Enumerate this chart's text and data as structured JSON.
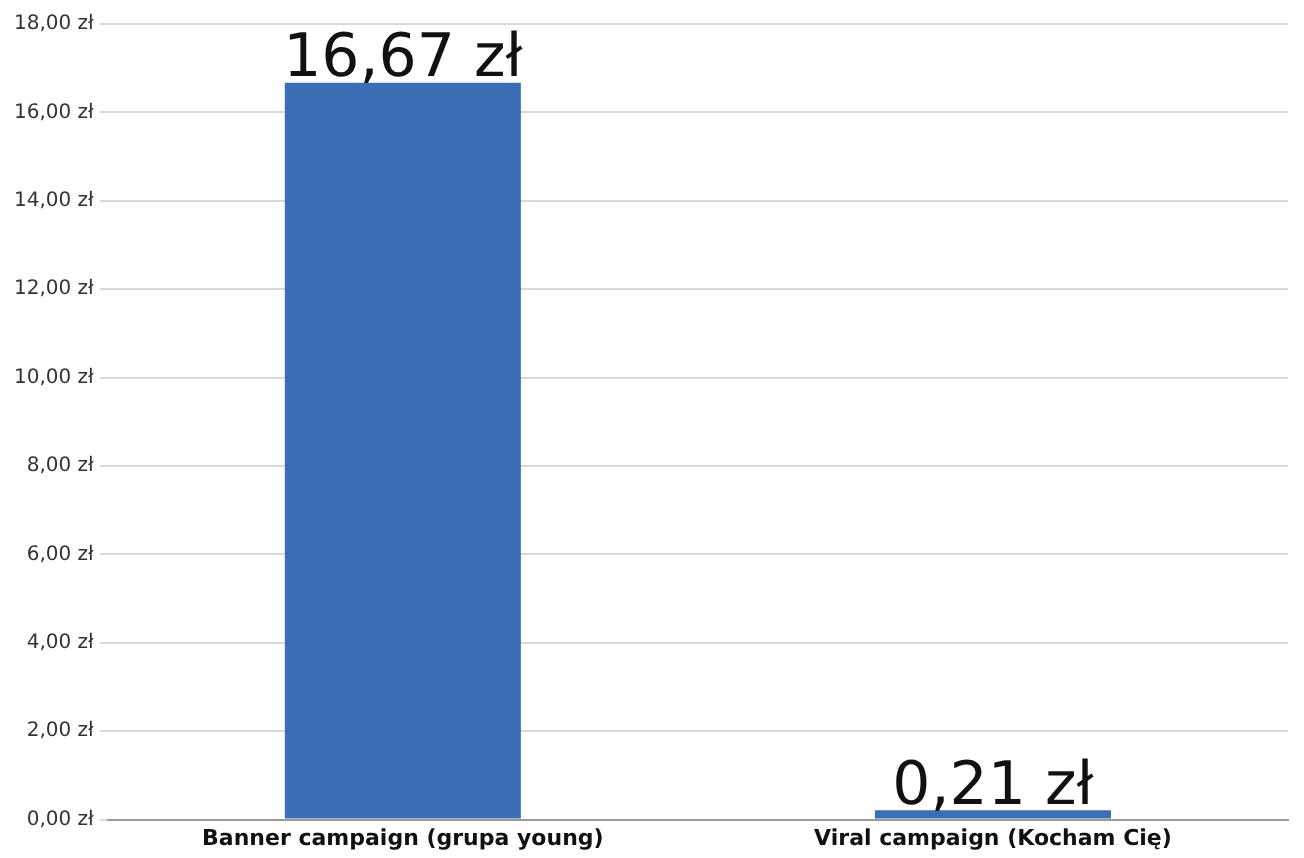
{
  "chart_data": {
    "type": "bar",
    "categories": [
      "Banner campaign (grupa young)",
      "Viral campaign (Kocham Cię)"
    ],
    "values": [
      16.67,
      0.21
    ],
    "color": "#3a6fb5",
    "value_labels": [
      "16,67 zł",
      "0,21 zł"
    ],
    "ylim": [
      0,
      18
    ],
    "yticks": [
      {
        "value": 0,
        "label": "0,00 zł"
      },
      {
        "value": 2,
        "label": "2,00 zł"
      },
      {
        "value": 4,
        "label": "4,00 zł"
      },
      {
        "value": 6,
        "label": "6,00 zł"
      },
      {
        "value": 8,
        "label": "8,00 zł"
      },
      {
        "value": 10,
        "label": "10,00 zł"
      },
      {
        "value": 12,
        "label": "12,00 zł"
      },
      {
        "value": 14,
        "label": "14,00 zł"
      },
      {
        "value": 16,
        "label": "16,00 zł"
      },
      {
        "value": 18,
        "label": "18,00 zł"
      }
    ],
    "grid": "y",
    "legend": false
  }
}
